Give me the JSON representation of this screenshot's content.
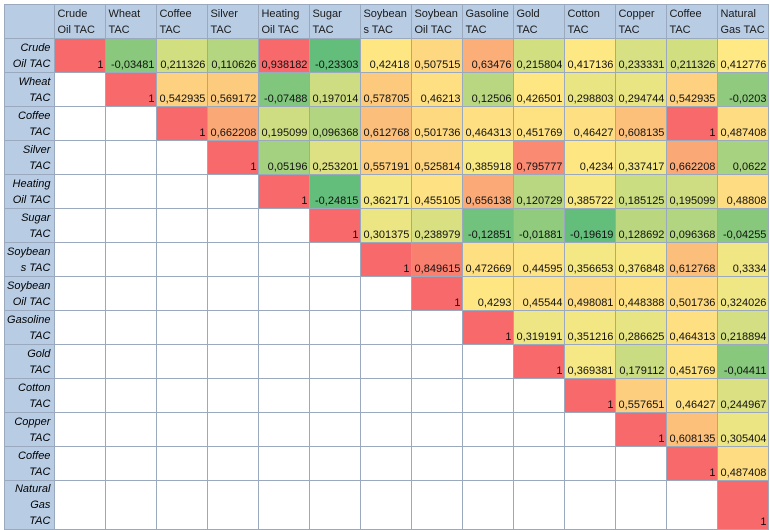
{
  "columns": [
    "Crude Oil TAC",
    "Wheat TAC",
    "Coffee TAC",
    "Silver TAC",
    "Heating Oil TAC",
    "Sugar TAC",
    "Soybean s TAC",
    "Soybean Oil TAC",
    "Gasoline TAC",
    "Gold TAC",
    "Cotton TAC",
    "Copper TAC",
    "Coffee TAC",
    "Natural Gas TAC"
  ],
  "rows": [
    {
      "label": "Crude Oil TAC",
      "cells": [
        {
          "v": "1",
          "c": "#f8696b"
        },
        {
          "v": "-0,03481",
          "c": "#8ac97d"
        },
        {
          "v": "0,211326",
          "c": "#d2df81"
        },
        {
          "v": "0,110626",
          "c": "#b5d680"
        },
        {
          "v": "0,938182",
          "c": "#f8696b"
        },
        {
          "v": "-0,23303",
          "c": "#63be7b"
        },
        {
          "v": "0,42418",
          "c": "#fee783"
        },
        {
          "v": "0,507515",
          "c": "#fed880"
        },
        {
          "v": "0,63476",
          "c": "#fbae78"
        },
        {
          "v": "0,215804",
          "c": "#d2df81"
        },
        {
          "v": "0,417136",
          "c": "#fee883"
        },
        {
          "v": "0,233331",
          "c": "#d7e082"
        },
        {
          "v": "0,211326",
          "c": "#d2df81"
        },
        {
          "v": "0,412776",
          "c": "#ffe984"
        }
      ]
    },
    {
      "label": "Wheat TAC",
      "cells": [
        null,
        {
          "v": "1",
          "c": "#f8696b"
        },
        {
          "v": "0,542935",
          "c": "#fdd17f"
        },
        {
          "v": "0,569172",
          "c": "#fdcb7e"
        },
        {
          "v": "-0,07488",
          "c": "#80c67d"
        },
        {
          "v": "0,197014",
          "c": "#cedd81"
        },
        {
          "v": "0,578705",
          "c": "#fdc97d"
        },
        {
          "v": "0,46213",
          "c": "#fee082"
        },
        {
          "v": "0,12506",
          "c": "#b9d780"
        },
        {
          "v": "0,426501",
          "c": "#fee783"
        },
        {
          "v": "0,298803",
          "c": "#eae583"
        },
        {
          "v": "0,294744",
          "c": "#e9e583"
        },
        {
          "v": "0,542935",
          "c": "#fdd17f"
        },
        {
          "v": "-0,0203",
          "c": "#8fca7e"
        }
      ]
    },
    {
      "label": "Coffee TAC",
      "cells": [
        null,
        null,
        {
          "v": "1",
          "c": "#f8696b"
        },
        {
          "v": "0,662208",
          "c": "#fba877"
        },
        {
          "v": "0,195099",
          "c": "#cedd81"
        },
        {
          "v": "0,096368",
          "c": "#b1d580"
        },
        {
          "v": "0,612768",
          "c": "#fcbf7b"
        },
        {
          "v": "0,501736",
          "c": "#fed980"
        },
        {
          "v": "0,464313",
          "c": "#fee082"
        },
        {
          "v": "0,451769",
          "c": "#fee282"
        },
        {
          "v": "0,46427",
          "c": "#fee082"
        },
        {
          "v": "0,608135",
          "c": "#fcc07b"
        },
        {
          "v": "1",
          "c": "#f8696b"
        },
        {
          "v": "0,487408",
          "c": "#fedc81"
        }
      ]
    },
    {
      "label": "Silver TAC",
      "cells": [
        null,
        null,
        null,
        {
          "v": "1",
          "c": "#f8696b"
        },
        {
          "v": "0,05196",
          "c": "#a4d17f"
        },
        {
          "v": "0,253201",
          "c": "#dde183"
        },
        {
          "v": "0,557191",
          "c": "#fdce7e"
        },
        {
          "v": "0,525814",
          "c": "#fdd580"
        },
        {
          "v": "0,385918",
          "c": "#f8e884"
        },
        {
          "v": "0,795777",
          "c": "#fa8a71"
        },
        {
          "v": "0,4234",
          "c": "#fee783"
        },
        {
          "v": "0,337417",
          "c": "#f3e784"
        },
        {
          "v": "0,662208",
          "c": "#fba877"
        },
        {
          "v": "0,0622",
          "c": "#a7d27f"
        }
      ]
    },
    {
      "label": "Heating Oil TAC",
      "cells": [
        null,
        null,
        null,
        null,
        {
          "v": "1",
          "c": "#f8696b"
        },
        {
          "v": "-0,24815",
          "c": "#63be7b"
        },
        {
          "v": "0,362171",
          "c": "#f5e884"
        },
        {
          "v": "0,455105",
          "c": "#fee182"
        },
        {
          "v": "0,656138",
          "c": "#fbaa77"
        },
        {
          "v": "0,120729",
          "c": "#b8d780"
        },
        {
          "v": "0,385722",
          "c": "#f8e884"
        },
        {
          "v": "0,185125",
          "c": "#cbdd81"
        },
        {
          "v": "0,195099",
          "c": "#cedd81"
        },
        {
          "v": "0,48808",
          "c": "#fedc81"
        }
      ]
    },
    {
      "label": "Sugar TAC",
      "cells": [
        null,
        null,
        null,
        null,
        null,
        {
          "v": "1",
          "c": "#f8696b"
        },
        {
          "v": "0,301375",
          "c": "#ebe583"
        },
        {
          "v": "0,238979",
          "c": "#d9e082"
        },
        {
          "v": "-0,12851",
          "c": "#71c27c"
        },
        {
          "v": "-0,01881",
          "c": "#90cb7e"
        },
        {
          "v": "-0,19619",
          "c": "#63be7b"
        },
        {
          "v": "0,128692",
          "c": "#bad780"
        },
        {
          "v": "0,096368",
          "c": "#b1d580"
        },
        {
          "v": "-0,04255",
          "c": "#88c87d"
        }
      ]
    },
    {
      "label": "Soybean s TAC",
      "cells": [
        null,
        null,
        null,
        null,
        null,
        null,
        {
          "v": "1",
          "c": "#f8696b"
        },
        {
          "v": "0,849615",
          "c": "#f97f6f"
        },
        {
          "v": "0,472669",
          "c": "#fedf82"
        },
        {
          "v": "0,44595",
          "c": "#fee382"
        },
        {
          "v": "0,356653",
          "c": "#f4e884"
        },
        {
          "v": "0,376848",
          "c": "#f7e884"
        },
        {
          "v": "0,612768",
          "c": "#fcbf7b"
        },
        {
          "v": "0,3334",
          "c": "#f1e684"
        }
      ]
    },
    {
      "label": "Soybean Oil TAC",
      "cells": [
        null,
        null,
        null,
        null,
        null,
        null,
        null,
        {
          "v": "1",
          "c": "#f8696b"
        },
        {
          "v": "0,4293",
          "c": "#fee683"
        },
        {
          "v": "0,45544",
          "c": "#fee182"
        },
        {
          "v": "0,498081",
          "c": "#feda81"
        },
        {
          "v": "0,448388",
          "c": "#fee282"
        },
        {
          "v": "0,501736",
          "c": "#fed980"
        },
        {
          "v": "0,324026",
          "c": "#efe684"
        }
      ]
    },
    {
      "label": "Gasoline TAC",
      "cells": [
        null,
        null,
        null,
        null,
        null,
        null,
        null,
        null,
        {
          "v": "1",
          "c": "#f8696b"
        },
        {
          "v": "0,319191",
          "c": "#eee684"
        },
        {
          "v": "0,351216",
          "c": "#f3e784"
        },
        {
          "v": "0,286625",
          "c": "#e7e483"
        },
        {
          "v": "0,464313",
          "c": "#fee082"
        },
        {
          "v": "0,218894",
          "c": "#d3df82"
        }
      ]
    },
    {
      "label": "Gold TAC",
      "cells": [
        null,
        null,
        null,
        null,
        null,
        null,
        null,
        null,
        null,
        {
          "v": "1",
          "c": "#f8696b"
        },
        {
          "v": "0,369381",
          "c": "#f6e884"
        },
        {
          "v": "0,179112",
          "c": "#c9dc81"
        },
        {
          "v": "0,451769",
          "c": "#fee282"
        },
        {
          "v": "-0,04411",
          "c": "#87c87d"
        }
      ]
    },
    {
      "label": "Cotton TAC",
      "cells": [
        null,
        null,
        null,
        null,
        null,
        null,
        null,
        null,
        null,
        null,
        {
          "v": "1",
          "c": "#f8696b"
        },
        {
          "v": "0,557651",
          "c": "#fdce7e"
        },
        {
          "v": "0,46427",
          "c": "#fee082"
        },
        {
          "v": "0,244967",
          "c": "#dbe182"
        }
      ]
    },
    {
      "label": "Copper TAC",
      "cells": [
        null,
        null,
        null,
        null,
        null,
        null,
        null,
        null,
        null,
        null,
        null,
        {
          "v": "1",
          "c": "#f8696b"
        },
        {
          "v": "0,608135",
          "c": "#fcc07b"
        },
        {
          "v": "0,305404",
          "c": "#ece584"
        }
      ]
    },
    {
      "label": "Coffee TAC",
      "cells": [
        null,
        null,
        null,
        null,
        null,
        null,
        null,
        null,
        null,
        null,
        null,
        null,
        {
          "v": "1",
          "c": "#f8696b"
        },
        {
          "v": "0,487408",
          "c": "#fedc81"
        }
      ]
    },
    {
      "label": "Natural Gas TAC",
      "cells": [
        null,
        null,
        null,
        null,
        null,
        null,
        null,
        null,
        null,
        null,
        null,
        null,
        null,
        {
          "v": "1",
          "c": "#f8696b"
        }
      ]
    }
  ]
}
